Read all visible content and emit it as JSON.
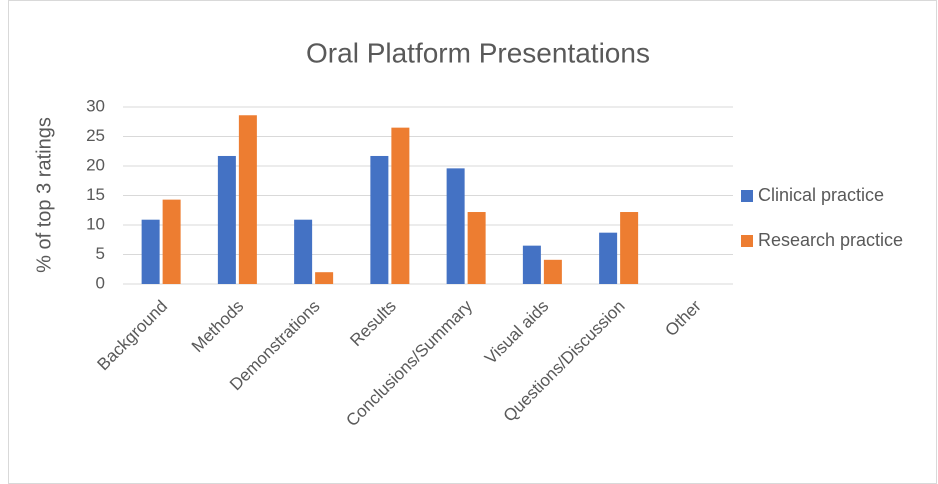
{
  "chart_data": {
    "type": "bar",
    "title": "Oral Platform Presentations",
    "y_label": "% of top 3 ratings",
    "categories": [
      "Background",
      "Methods",
      "Demonstrations",
      "Results",
      "Conclusions/Summary",
      "Visual aids",
      "Questions/Discussion",
      "Other"
    ],
    "series": [
      {
        "name": "Clinical practice",
        "color": "#4472c4",
        "values": [
          10.9,
          21.7,
          10.9,
          21.7,
          19.6,
          6.5,
          8.7,
          0
        ]
      },
      {
        "name": "Research practice",
        "color": "#ed7d31",
        "values": [
          14.3,
          28.6,
          2.0,
          26.5,
          12.2,
          4.1,
          12.2,
          0
        ]
      }
    ],
    "ylim": [
      0,
      30
    ],
    "yticks": [
      0,
      5,
      10,
      15,
      20,
      25,
      30
    ],
    "grid": true,
    "legend": "right"
  }
}
